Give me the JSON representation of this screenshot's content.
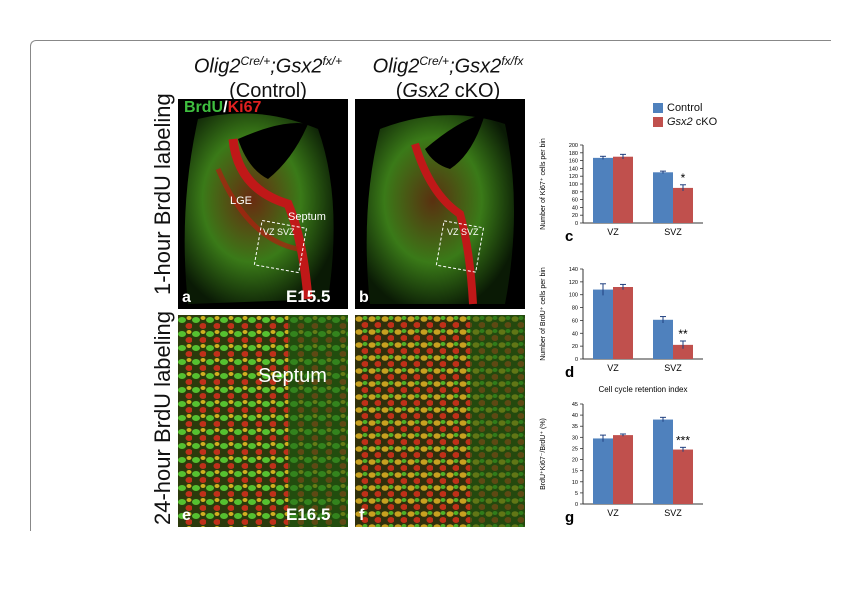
{
  "figure": {
    "rows": [
      "1-hour BrdU labeling",
      "24-hour BrdU labeling"
    ],
    "columns": [
      {
        "genotype": "Olig2",
        "sup1": "Cre/+",
        "sep": ";",
        "gene2": "Gsx2",
        "sup2": "fx/+",
        "condition": "(Control)"
      },
      {
        "genotype": "Olig2",
        "sup1": "Cre/+",
        "sep": ";",
        "gene2": "Gsx2",
        "sup2": "fx/fx",
        "condition_pre": "(",
        "condition_gene": "Gsx2",
        "condition_post": " cKO)"
      }
    ],
    "stain": {
      "a": "BrdU",
      "slash": "/",
      "b": "Ki67",
      "color_a": "#3fbf3f",
      "color_b": "#e02020"
    },
    "panels": {
      "a": "a",
      "b": "b",
      "e": "e",
      "f": "f",
      "c": "c",
      "d": "d",
      "g": "g"
    },
    "stages": {
      "top": "E15.5",
      "bottom": "E16.5"
    },
    "inner_labels": {
      "lge": "LGE",
      "septum_small": "Septum",
      "vz_svz": "VZ SVZ",
      "septum_large": "Septum"
    }
  },
  "legend": [
    {
      "name": "Control",
      "color": "#4f81bd"
    },
    {
      "name_italic": "Gsx2",
      "name_rest": " cKO",
      "color": "#c0504d"
    }
  ],
  "chart_data": [
    {
      "type": "bar",
      "panel": "c",
      "categories": [
        "VZ",
        "SVZ"
      ],
      "series": [
        {
          "name": "Control",
          "values": [
            167,
            130
          ]
        },
        {
          "name": "Gsx2 cKO",
          "values": [
            170,
            90
          ]
        }
      ],
      "errors": [
        [
          4,
          3
        ],
        [
          6,
          8
        ]
      ],
      "ylabel": "Number of Ki67⁺ cells per bin",
      "ylim": [
        0,
        200
      ],
      "ticks": [
        0,
        20,
        40,
        60,
        80,
        100,
        120,
        140,
        160,
        180,
        200
      ],
      "annotation": "*",
      "title": ""
    },
    {
      "type": "bar",
      "panel": "d",
      "categories": [
        "VZ",
        "SVZ"
      ],
      "series": [
        {
          "name": "Control",
          "values": [
            108,
            61
          ]
        },
        {
          "name": "Gsx2 cKO",
          "values": [
            112,
            22
          ]
        }
      ],
      "errors": [
        [
          9,
          5
        ],
        [
          4,
          6
        ]
      ],
      "ylabel": "Number of BrdU⁺ cells per bin",
      "ylim": [
        0,
        140
      ],
      "ticks": [
        0,
        20,
        40,
        60,
        80,
        100,
        120,
        140
      ],
      "annotation": "**",
      "title": ""
    },
    {
      "type": "bar",
      "panel": "g",
      "categories": [
        "VZ",
        "SVZ"
      ],
      "series": [
        {
          "name": "Control",
          "values": [
            29.5,
            38
          ]
        },
        {
          "name": "Gsx2 cKO",
          "values": [
            31,
            24.5
          ]
        }
      ],
      "errors": [
        [
          1.5,
          1
        ],
        [
          0.5,
          1
        ]
      ],
      "ylabel": "BrdU⁺Ki67⁻/BrdU⁺ (%)",
      "ylim": [
        0,
        45
      ],
      "ticks": [
        0,
        5,
        10,
        15,
        20,
        25,
        30,
        35,
        40,
        45
      ],
      "annotation": "***",
      "title": "Cell cycle retention index"
    }
  ]
}
